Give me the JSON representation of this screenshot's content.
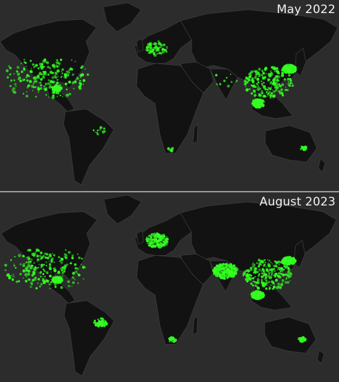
{
  "panels": [
    {
      "label": "May 2022",
      "regions": [
        {
          "name": "usa",
          "level": 1.0
        },
        {
          "name": "mexico",
          "level": 0.4
        },
        {
          "name": "europe",
          "level": 0.3
        },
        {
          "name": "china",
          "level": 0.95
        },
        {
          "name": "southeast-asia",
          "level": 0.6
        },
        {
          "name": "india",
          "level": 0.05
        },
        {
          "name": "japan-korea",
          "level": 0.6
        },
        {
          "name": "south-america",
          "level": 0.05
        },
        {
          "name": "africa",
          "level": 0.03
        },
        {
          "name": "australia",
          "level": 0.1
        }
      ]
    },
    {
      "label": "August 2023",
      "regions": [
        {
          "name": "usa",
          "level": 1.0
        },
        {
          "name": "mexico",
          "level": 0.5
        },
        {
          "name": "europe",
          "level": 0.7
        },
        {
          "name": "china",
          "level": 1.0
        },
        {
          "name": "southeast-asia",
          "level": 0.8
        },
        {
          "name": "india",
          "level": 1.0
        },
        {
          "name": "japan-korea",
          "level": 0.7
        },
        {
          "name": "south-america",
          "level": 0.2
        },
        {
          "name": "africa",
          "level": 0.08
        },
        {
          "name": "australia",
          "level": 0.2
        }
      ]
    }
  ],
  "colors": {
    "ocean": "#2c2c2c",
    "land": "#121212",
    "border": "#3c3c3c",
    "highlight": "#33ff22"
  }
}
